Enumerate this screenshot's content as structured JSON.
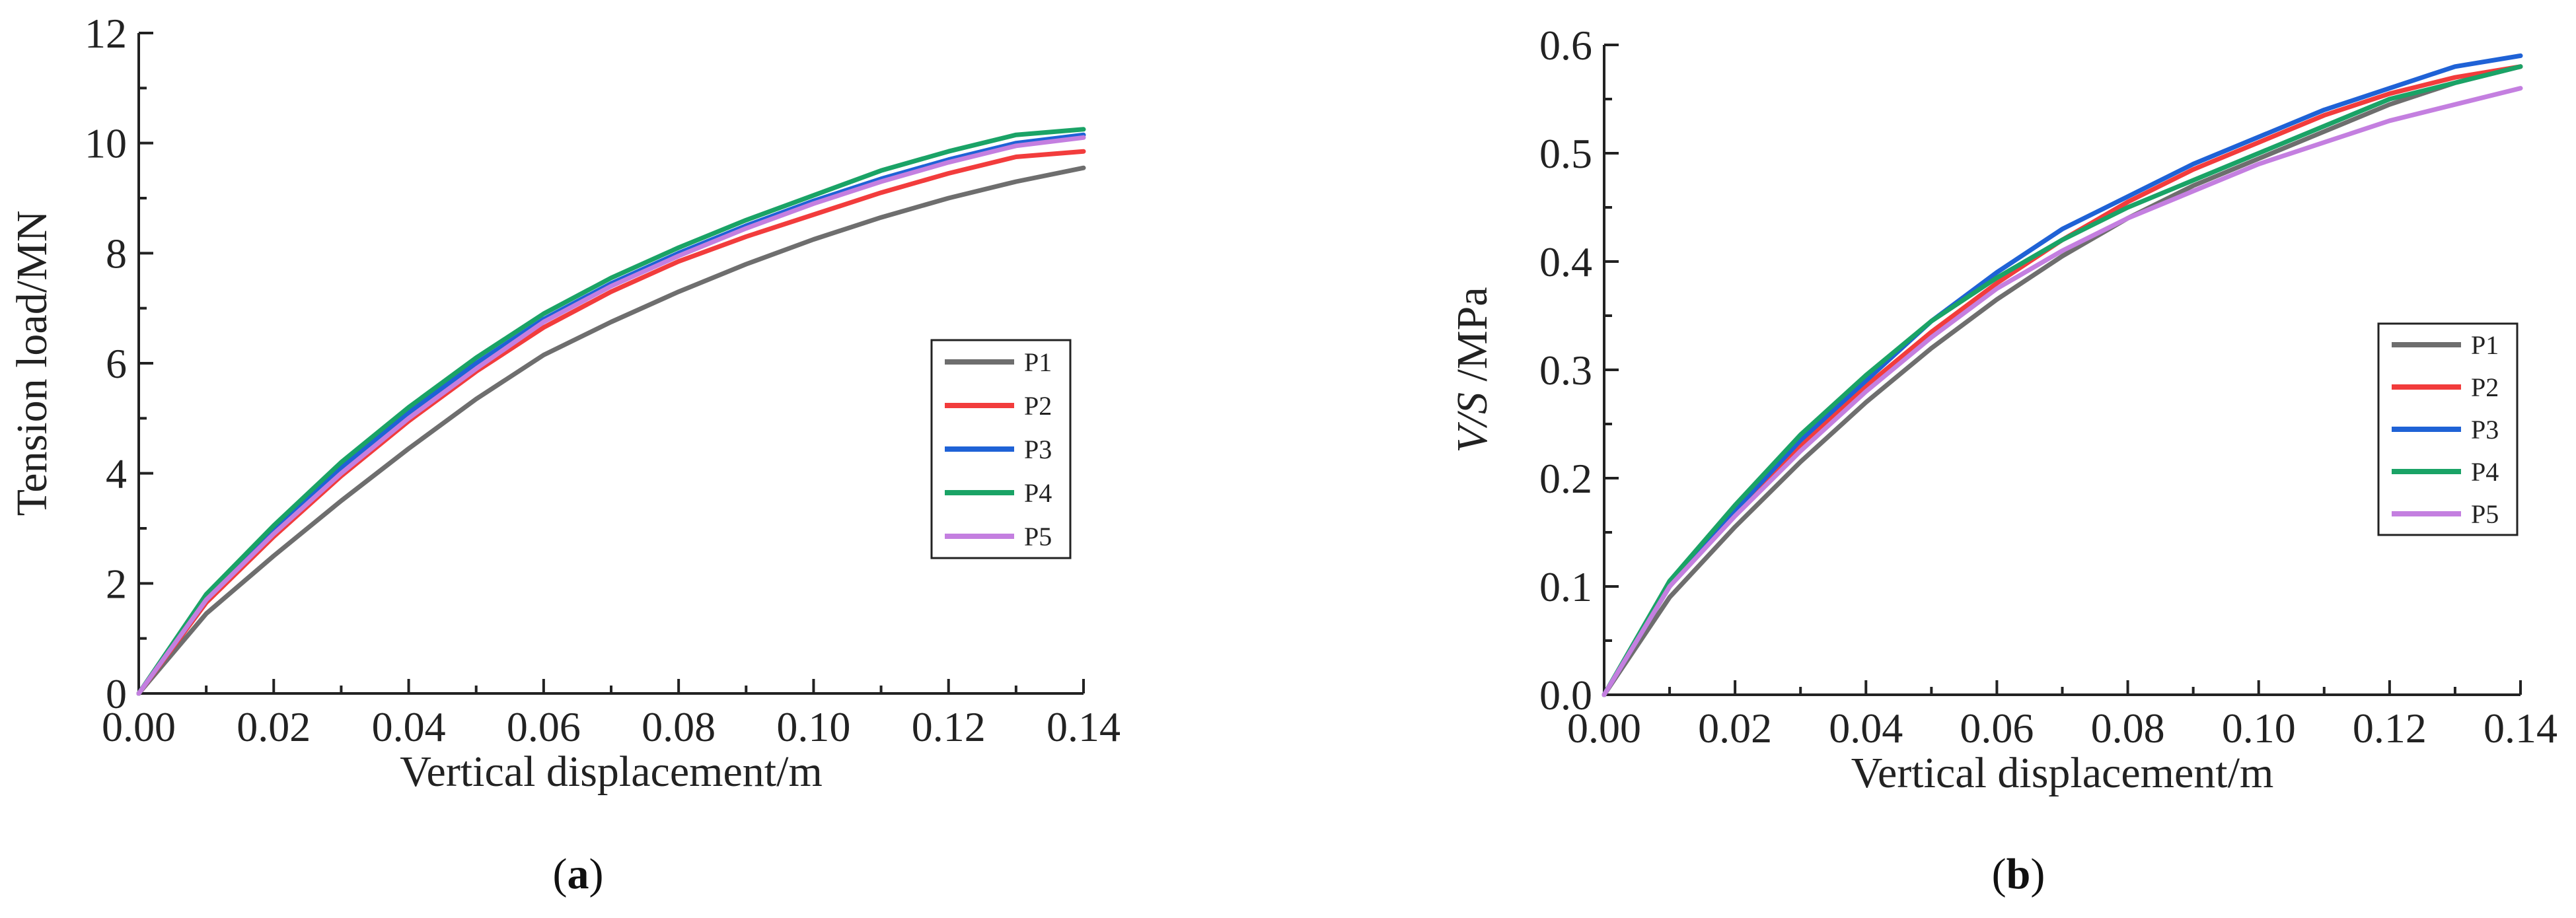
{
  "chart_data": [
    {
      "type": "line",
      "panel_label": "a",
      "xlabel": "Vertical displacement/m",
      "ylabel": "Tension load/MN",
      "xlim": [
        0,
        0.14
      ],
      "ylim": [
        0,
        12
      ],
      "xticks": [
        0,
        0.02,
        0.04,
        0.06,
        0.08,
        0.1,
        0.12,
        0.14
      ],
      "xtick_labels": [
        "0.00",
        "0.02",
        "0.04",
        "0.06",
        "0.08",
        "0.10",
        "0.12",
        "0.14"
      ],
      "yticks": [
        0,
        2,
        4,
        6,
        8,
        10,
        12
      ],
      "ytick_labels": [
        "0",
        "2",
        "4",
        "6",
        "8",
        "10",
        "12"
      ],
      "grid": false,
      "legend_position": "right",
      "x": [
        0,
        0.01,
        0.02,
        0.03,
        0.04,
        0.05,
        0.06,
        0.07,
        0.08,
        0.09,
        0.1,
        0.11,
        0.12,
        0.13,
        0.14
      ],
      "series": [
        {
          "name": "P1",
          "color": "#6e6e6e",
          "values": [
            0,
            1.45,
            2.5,
            3.5,
            4.45,
            5.35,
            6.15,
            6.75,
            7.3,
            7.8,
            8.25,
            8.65,
            9.0,
            9.3,
            9.55
          ]
        },
        {
          "name": "P2",
          "color": "#f23c3c",
          "values": [
            0,
            1.65,
            2.85,
            3.95,
            4.95,
            5.85,
            6.65,
            7.3,
            7.85,
            8.3,
            8.7,
            9.1,
            9.45,
            9.75,
            9.85
          ]
        },
        {
          "name": "P3",
          "color": "#1f62d6",
          "values": [
            0,
            1.7,
            2.95,
            4.1,
            5.1,
            6.0,
            6.8,
            7.45,
            8.0,
            8.5,
            8.95,
            9.35,
            9.7,
            10.0,
            10.15
          ]
        },
        {
          "name": "P4",
          "color": "#1aa366",
          "values": [
            0,
            1.8,
            3.05,
            4.2,
            5.2,
            6.1,
            6.9,
            7.55,
            8.1,
            8.6,
            9.05,
            9.5,
            9.85,
            10.15,
            10.25
          ]
        },
        {
          "name": "P5",
          "color": "#c47fe0",
          "values": [
            0,
            1.7,
            2.9,
            4.0,
            5.0,
            5.9,
            6.75,
            7.4,
            7.95,
            8.45,
            8.9,
            9.3,
            9.65,
            9.95,
            10.1
          ]
        }
      ]
    },
    {
      "type": "line",
      "panel_label": "b",
      "xlabel": "Vertical displacement/m",
      "ylabel_italic": "V/S",
      "ylabel_rest": " /MPa",
      "xlim": [
        0,
        0.14
      ],
      "ylim": [
        0,
        0.6
      ],
      "xticks": [
        0,
        0.02,
        0.04,
        0.06,
        0.08,
        0.1,
        0.12,
        0.14
      ],
      "xtick_labels": [
        "0.00",
        "0.02",
        "0.04",
        "0.06",
        "0.08",
        "0.10",
        "0.12",
        "0.14"
      ],
      "yticks": [
        0,
        0.1,
        0.2,
        0.3,
        0.4,
        0.5,
        0.6
      ],
      "ytick_labels": [
        "0.0",
        "0.1",
        "0.2",
        "0.3",
        "0.4",
        "0.5",
        "0.6"
      ],
      "grid": false,
      "legend_position": "right",
      "x": [
        0,
        0.01,
        0.02,
        0.03,
        0.04,
        0.05,
        0.06,
        0.07,
        0.08,
        0.09,
        0.1,
        0.11,
        0.12,
        0.13,
        0.14
      ],
      "series": [
        {
          "name": "P1",
          "color": "#6e6e6e",
          "values": [
            0,
            0.09,
            0.155,
            0.215,
            0.27,
            0.32,
            0.365,
            0.405,
            0.44,
            0.47,
            0.495,
            0.52,
            0.545,
            0.565,
            0.58
          ]
        },
        {
          "name": "P2",
          "color": "#f23c3c",
          "values": [
            0,
            0.1,
            0.17,
            0.23,
            0.285,
            0.335,
            0.38,
            0.42,
            0.455,
            0.485,
            0.51,
            0.535,
            0.555,
            0.57,
            0.58
          ]
        },
        {
          "name": "P3",
          "color": "#1f62d6",
          "values": [
            0,
            0.1,
            0.17,
            0.235,
            0.29,
            0.345,
            0.39,
            0.43,
            0.46,
            0.49,
            0.515,
            0.54,
            0.56,
            0.58,
            0.59
          ]
        },
        {
          "name": "P4",
          "color": "#1aa366",
          "values": [
            0,
            0.105,
            0.175,
            0.24,
            0.295,
            0.345,
            0.385,
            0.42,
            0.45,
            0.475,
            0.5,
            0.525,
            0.55,
            0.565,
            0.58
          ]
        },
        {
          "name": "P5",
          "color": "#c47fe0",
          "values": [
            0,
            0.1,
            0.165,
            0.225,
            0.28,
            0.33,
            0.375,
            0.41,
            0.44,
            0.465,
            0.49,
            0.51,
            0.53,
            0.545,
            0.56
          ]
        }
      ]
    }
  ]
}
